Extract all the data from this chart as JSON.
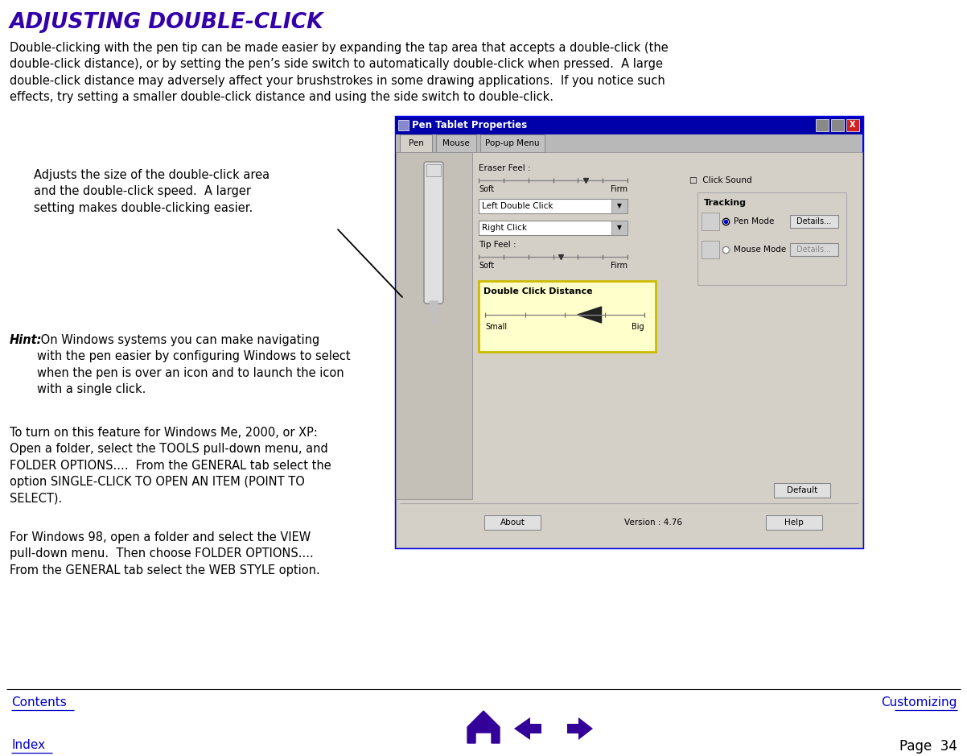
{
  "title": "ADJUSTING DOUBLE-CLICK",
  "title_color": "#3300AA",
  "bg_color": "#ffffff",
  "body_text_color": "#000000",
  "link_color": "#0000CC",
  "body_paragraph": "Double-clicking with the pen tip can be made easier by expanding the tap area that accepts a double-click (the\ndouble-click distance), or by setting the pen’s side switch to automatically double-click when pressed.  A large\ndouble-click distance may adversely affect your brushstrokes in some drawing applications.  If you notice such\neffects, try setting a smaller double-click distance and using the side switch to double-click.",
  "callout_text": "Adjusts the size of the double-click area\nand the double-click speed.  A larger\nsetting makes double-clicking easier.",
  "hint_bold": "Hint:",
  "hint_text": " On Windows systems you can make navigating\nwith the pen easier by configuring Windows to select\nwhen the pen is over an icon and to launch the icon\nwith a single click.",
  "para2": "To turn on this feature for Windows Me, 2000, or XP:\nOpen a folder, select the TOOLS pull-down menu, and\nFOLDER OPTIONS....  From the GENERAL tab select the\noption SINGLE-CLICK TO OPEN AN ITEM (POINT TO\nSELECT).",
  "para3": "For Windows 98, open a folder and select the VIEW\npull-down menu.  Then choose FOLDER OPTIONS....\nFrom the GENERAL tab select the WEB STYLE option.",
  "footer_left1": "Contents",
  "footer_right1": "Customizing",
  "footer_left2": "Index",
  "footer_right2": "Page  34",
  "screenshot_color": "#d4d0c8",
  "screenshot_border": "#0000FF",
  "screenshot_title_bar": "#0000AA",
  "nav_color": "#330099"
}
